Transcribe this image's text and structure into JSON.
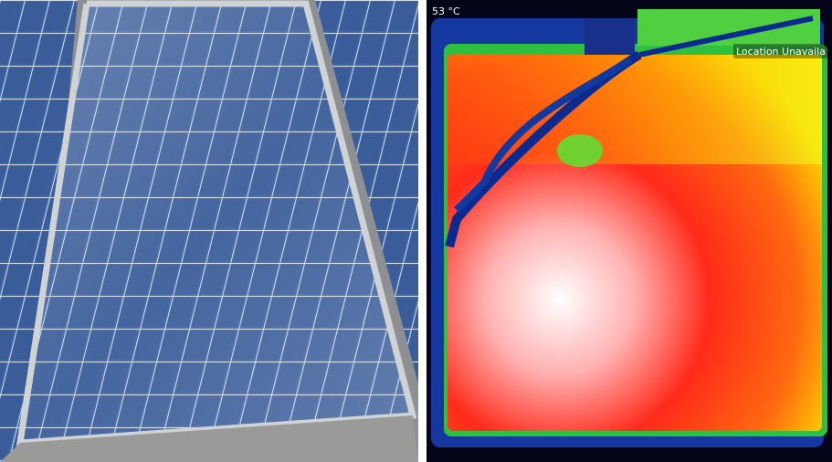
{
  "thermal_overlay": {
    "temperature": "53 °C",
    "location": "Location Unavaila"
  }
}
